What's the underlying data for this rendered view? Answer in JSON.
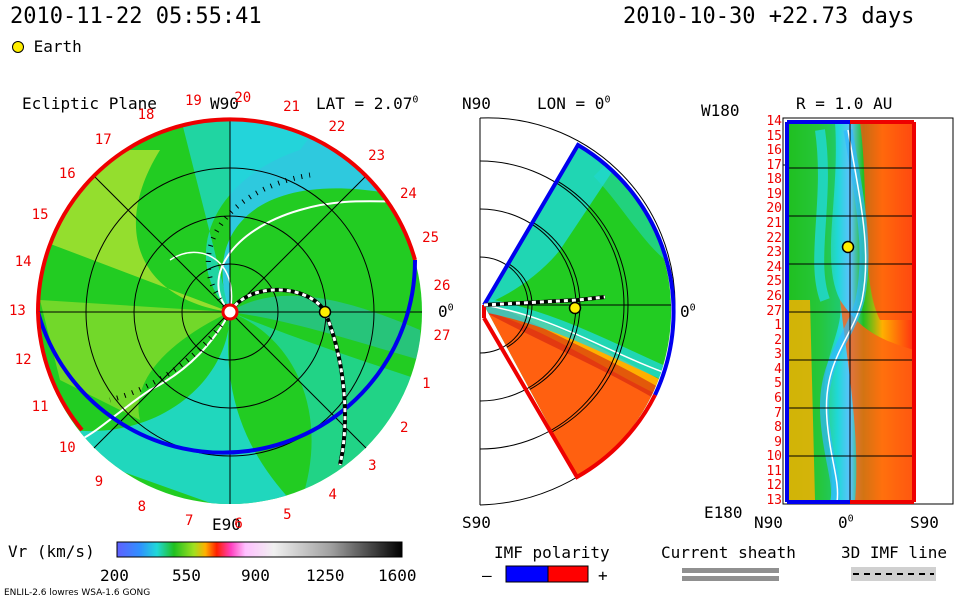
{
  "header": {
    "timestamp": "2010-11-22 05:55:41",
    "reference": "2010-10-30 +22.73 days",
    "legend_marker": "Earth"
  },
  "ecliptic_panel": {
    "title": "Ecliptic Plane",
    "top_label": "W90",
    "bottom_label": "E90",
    "right_label": "0",
    "lat_label": "LAT = 2.07",
    "lat_sup": "0",
    "right_sup": "0",
    "carrington_labels": [
      "19",
      "20",
      "21",
      "22",
      "23",
      "24",
      "25",
      "26",
      "27",
      "1",
      "2",
      "3",
      "4",
      "5",
      "6",
      "7",
      "8",
      "9",
      "10",
      "11",
      "12",
      "13",
      "14",
      "15",
      "16",
      "17",
      "18"
    ]
  },
  "meridional_panel": {
    "top_left_label": "N90",
    "bottom_left_label": "S90",
    "lon_label": "LON = 0",
    "lon_sup": "0",
    "right_label": "0",
    "right_sup": "0"
  },
  "radial_panel": {
    "title": "R = 1.0 AU",
    "top_left_label": "W180",
    "bottom_left_label": "E180",
    "bottom_axis": [
      "N90",
      "0",
      "S90"
    ],
    "bottom_axis_sup": "0",
    "carrington_labels": [
      "14",
      "15",
      "16",
      "17",
      "18",
      "19",
      "20",
      "21",
      "22",
      "23",
      "24",
      "25",
      "26",
      "27",
      "1",
      "2",
      "3",
      "4",
      "5",
      "6",
      "7",
      "8",
      "9",
      "10",
      "11",
      "12",
      "13"
    ]
  },
  "colorbar": {
    "label": "Vr (km/s)",
    "ticks": [
      "200",
      "550",
      "900",
      "1250",
      "1600"
    ]
  },
  "legends": {
    "imf_polarity": "IMF polarity",
    "minus": "–",
    "plus": "+",
    "current_sheath": "Current sheath",
    "imf_line": "3D IMF line",
    "negative_color": "#0000ff",
    "positive_color": "#ff0000"
  },
  "footer": {
    "model": "ENLIL-2.6 lowres WSA-1.6 GONG"
  },
  "colors": {
    "ambient_solar_wind": "#22cc22",
    "slow_wind": "#22d8d8",
    "fast_wind": "#dd3311",
    "earth": "#ffee00"
  }
}
